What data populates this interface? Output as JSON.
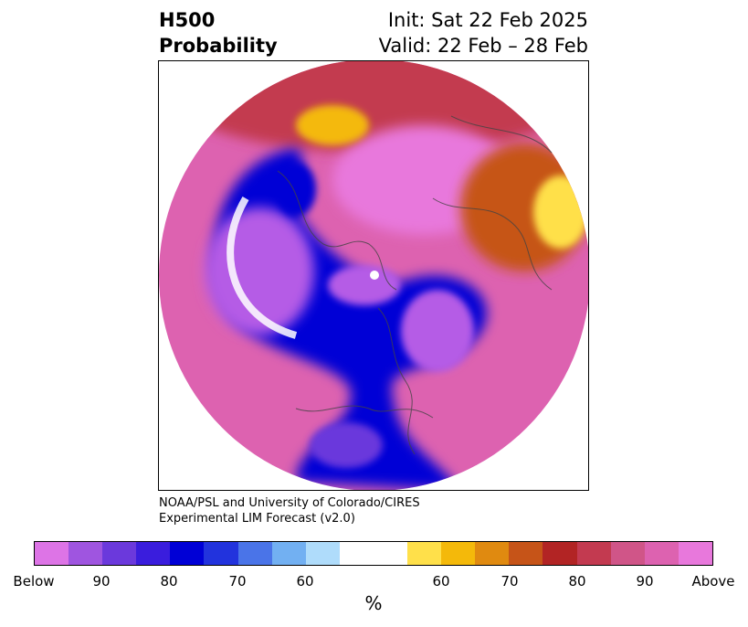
{
  "title": {
    "field": "H500",
    "product": "Probability",
    "init": "Init: Sat 22 Feb 2025",
    "valid": "Valid: 22 Feb – 28 Feb"
  },
  "credit": {
    "line1": "NOAA/PSL and University of Colorado/CIRES",
    "line2": "Experimental LIM Forecast (v2.0)"
  },
  "colorbar": {
    "unit": "%",
    "colors": [
      "#dd74e6",
      "#9f55e0",
      "#6b39dc",
      "#3a1ddd",
      "#0000d6",
      "#2233dd",
      "#4a74e8",
      "#72b0f2",
      "#afdcfb",
      "#ffffff",
      "#ffffff",
      "#ffe04a",
      "#f4b90a",
      "#e08a10",
      "#c65418",
      "#b22424",
      "#c33a50",
      "#d05588",
      "#dd62b0",
      "#e878dc"
    ],
    "ticks": [
      "Below",
      "90",
      "80",
      "70",
      "60",
      "60",
      "70",
      "80",
      "90",
      "Above"
    ]
  }
}
